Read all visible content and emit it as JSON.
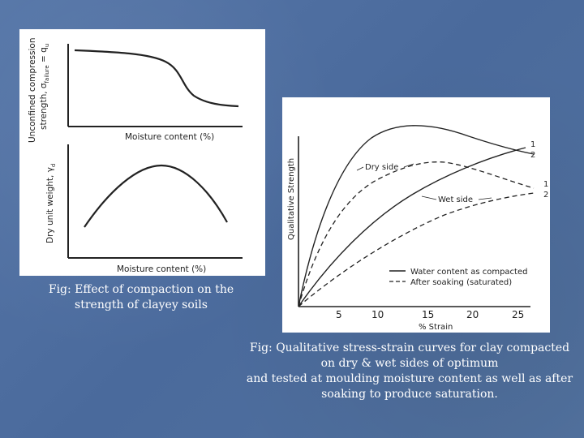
{
  "left_figure": {
    "top_chart": {
      "ylabel_line1": "Unconfined compression",
      "ylabel_line2": "strength, σ",
      "ylabel_sub": "failure",
      "ylabel_tail": " = q",
      "ylabel_tail_sub": "u",
      "xlabel": "Moisture content (%)"
    },
    "bottom_chart": {
      "ylabel": "Dry unit weight, γ",
      "ylabel_sub": "d",
      "xlabel": "Moisture content (%)"
    },
    "caption_line1": "Fig: Effect of compaction on the",
    "caption_line2": "strength of clayey soils"
  },
  "right_figure": {
    "ylabel": "Qualitative Strength",
    "xlabel": "% Strain",
    "x_ticks": [
      "5",
      "10",
      "15",
      "20",
      "25"
    ],
    "annotations": {
      "dry_side": "Dry side",
      "wet_side": "Wet side",
      "curve_1_top": "1",
      "curve_2_top": "2",
      "curve_1_bottom": "1",
      "curve_2_bottom": "2"
    },
    "legend": {
      "solid": "Water content as compacted",
      "dashed": "After soaking (saturated)"
    },
    "caption_line1": "Fig: Qualitative stress-strain curves for clay compacted",
    "caption_line2": "on dry & wet sides of optimum",
    "caption_line3": "and tested at moulding moisture content as well as after",
    "caption_line4": "soaking to produce saturation."
  },
  "colors": {
    "background": "#4f6fa0",
    "panel": "#ffffff",
    "ink": "#222222",
    "caption_text": "#ffffff"
  }
}
